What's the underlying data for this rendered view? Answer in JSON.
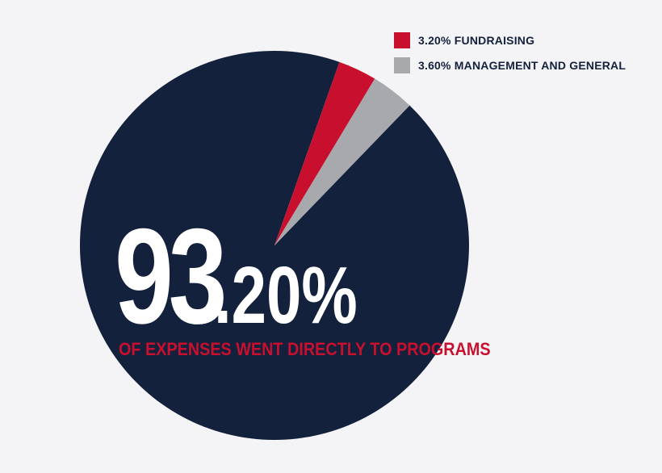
{
  "chart_data": {
    "type": "pie",
    "slices": [
      {
        "label": "Programs",
        "value": 93.2,
        "color": "#13213d"
      },
      {
        "label": "FUNDRAISING",
        "value": 3.2,
        "color": "#c8102e"
      },
      {
        "label": "MANAGEMENT AND GENERAL",
        "value": 3.6,
        "color": "#a7a9ac"
      }
    ],
    "legend": [
      {
        "text": "3.20% FUNDRAISING",
        "color": "#c8102e"
      },
      {
        "text": "3.60% MANAGEMENT AND GENERAL",
        "color": "#a7a9ac"
      }
    ],
    "headline_integer": "93",
    "headline_decimal": ".20%",
    "caption": "OF EXPENSES WENT DIRECTLY TO PROGRAMS",
    "legend_placement": "top-right"
  }
}
